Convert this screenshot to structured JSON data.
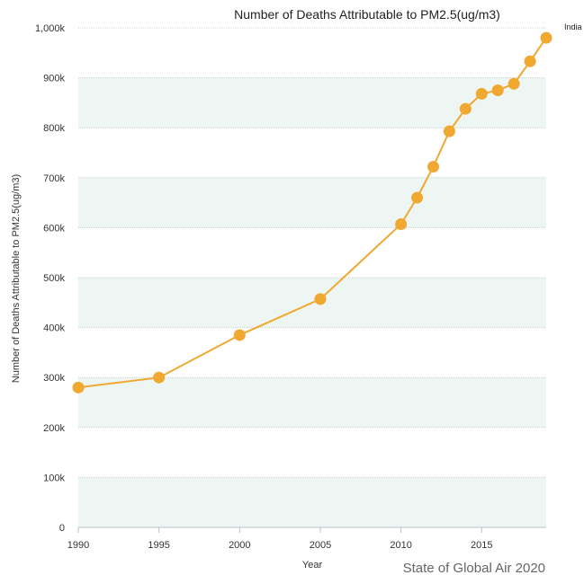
{
  "chart_data": {
    "type": "line",
    "title": "Number of Deaths Attributable to PM2.5(ug/m3)",
    "xlabel": "Year",
    "ylabel": "Number of Deaths Attributable to PM2.5(ug/m3)",
    "legend": {
      "placement": "top-right",
      "entries": [
        "India"
      ]
    },
    "credit": "State of Global Air 2020",
    "xlim": [
      1990,
      2019
    ],
    "ylim": [
      0,
      1000000
    ],
    "x_ticks": [
      1990,
      1995,
      2000,
      2005,
      2010,
      2015
    ],
    "x_tick_labels": [
      "1990",
      "1995",
      "2000",
      "2005",
      "2010",
      "2015"
    ],
    "y_ticks": [
      0,
      100000,
      200000,
      300000,
      400000,
      500000,
      600000,
      700000,
      800000,
      900000,
      1000000
    ],
    "y_tick_labels": [
      "0",
      "100k",
      "200k",
      "300k",
      "400k",
      "500k",
      "600k",
      "700k",
      "800k",
      "900k",
      "1,000k"
    ],
    "grid": true,
    "series": [
      {
        "name": "India",
        "color": "#f0a830",
        "x": [
          1990,
          1995,
          2000,
          2005,
          2010,
          2011,
          2012,
          2013,
          2014,
          2015,
          2016,
          2017,
          2018,
          2019
        ],
        "values": [
          280000,
          300000,
          385000,
          457000,
          607000,
          660000,
          722000,
          793000,
          838000,
          868000,
          875000,
          888000,
          933000,
          980000
        ]
      }
    ],
    "colors": {
      "band": "#eef6f3",
      "gridline": "#c8d0cc",
      "line": "#f0a830",
      "marker": "#f0a830"
    }
  }
}
